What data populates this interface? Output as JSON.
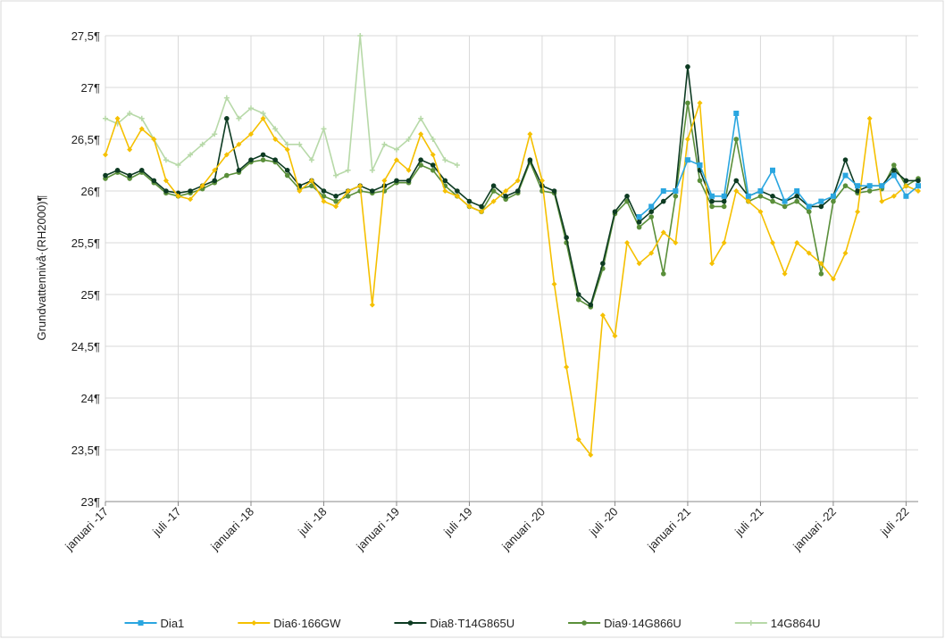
{
  "chart_data": {
    "type": "line",
    "y_label": "Grundvattennivå·(RH2000)¶",
    "x": [
      "2017-01",
      "2017-02",
      "2017-03",
      "2017-04",
      "2017-05",
      "2017-06",
      "2017-07",
      "2017-08",
      "2017-09",
      "2017-10",
      "2017-11",
      "2017-12",
      "2018-01",
      "2018-02",
      "2018-03",
      "2018-04",
      "2018-05",
      "2018-06",
      "2018-07",
      "2018-08",
      "2018-09",
      "2018-10",
      "2018-11",
      "2018-12",
      "2019-01",
      "2019-02",
      "2019-03",
      "2019-04",
      "2019-05",
      "2019-06",
      "2019-07",
      "2019-08",
      "2019-09",
      "2019-10",
      "2019-11",
      "2019-12",
      "2020-01",
      "2020-02",
      "2020-03",
      "2020-04",
      "2020-05",
      "2020-06",
      "2020-07",
      "2020-08",
      "2020-09",
      "2020-10",
      "2020-11",
      "2020-12",
      "2021-01",
      "2021-02",
      "2021-03",
      "2021-04",
      "2021-05",
      "2021-06",
      "2021-07",
      "2021-08",
      "2021-09",
      "2021-10",
      "2021-11",
      "2021-12",
      "2022-01",
      "2022-02",
      "2022-03",
      "2022-04",
      "2022-05",
      "2022-06",
      "2022-07",
      "2022-08"
    ],
    "series": [
      {
        "name": "Dia1",
        "color": "#2aa6e0",
        "marker": "square",
        "values": [
          null,
          null,
          null,
          null,
          null,
          null,
          null,
          null,
          null,
          null,
          null,
          null,
          null,
          null,
          null,
          null,
          null,
          null,
          null,
          null,
          null,
          null,
          null,
          null,
          null,
          null,
          null,
          null,
          null,
          null,
          null,
          null,
          null,
          null,
          null,
          null,
          null,
          null,
          null,
          null,
          null,
          null,
          null,
          null,
          25.75,
          25.85,
          26.0,
          26.0,
          26.3,
          26.25,
          25.95,
          25.95,
          26.75,
          25.95,
          26.0,
          26.2,
          25.9,
          26.0,
          25.85,
          25.9,
          25.95,
          26.15,
          26.05,
          26.05,
          26.05,
          26.15,
          25.95,
          26.05
        ]
      },
      {
        "name": "Dia6·166GW",
        "color": "#f5c000",
        "marker": "diamond",
        "values": [
          26.35,
          26.7,
          26.4,
          26.6,
          26.5,
          26.1,
          25.95,
          25.92,
          26.05,
          26.2,
          26.35,
          26.45,
          26.55,
          26.7,
          26.5,
          26.4,
          26.0,
          26.1,
          25.9,
          25.85,
          26.0,
          26.05,
          24.9,
          26.1,
          26.3,
          26.2,
          26.55,
          26.35,
          26.0,
          25.95,
          25.85,
          25.8,
          25.9,
          26.0,
          26.1,
          26.55,
          26.1,
          25.1,
          24.3,
          23.6,
          23.45,
          24.8,
          24.6,
          25.5,
          25.3,
          25.4,
          25.6,
          25.5,
          26.5,
          26.85,
          25.3,
          25.5,
          26.0,
          25.9,
          25.8,
          25.5,
          25.2,
          25.5,
          25.4,
          25.3,
          25.15,
          25.4,
          25.8,
          26.7,
          25.9,
          25.95,
          26.05,
          26.0
        ]
      },
      {
        "name": "Dia8·T14G865U",
        "color": "#0d3b22",
        "marker": "circle",
        "values": [
          26.15,
          26.2,
          26.15,
          26.2,
          26.1,
          26.0,
          25.98,
          26.0,
          26.05,
          26.1,
          26.7,
          26.2,
          26.3,
          26.35,
          26.3,
          26.2,
          26.05,
          26.1,
          26.0,
          25.95,
          26.0,
          26.05,
          26.0,
          26.05,
          26.1,
          26.1,
          26.3,
          26.25,
          26.1,
          26.0,
          25.9,
          25.85,
          26.05,
          25.95,
          26.0,
          26.3,
          26.05,
          26.0,
          25.55,
          25.0,
          24.9,
          25.3,
          25.8,
          25.95,
          25.7,
          25.8,
          25.9,
          26.0,
          27.2,
          26.2,
          25.9,
          25.9,
          26.1,
          25.95,
          26.0,
          25.95,
          25.9,
          25.95,
          25.85,
          25.85,
          25.95,
          26.3,
          26.0,
          26.05,
          26.05,
          26.2,
          26.1,
          26.1
        ]
      },
      {
        "name": "Dia9·14G866U",
        "color": "#5a8f3a",
        "marker": "circle",
        "values": [
          26.12,
          26.18,
          26.12,
          26.18,
          26.08,
          25.98,
          25.95,
          25.98,
          26.02,
          26.08,
          26.15,
          26.18,
          26.28,
          26.3,
          26.28,
          26.15,
          26.02,
          26.05,
          25.95,
          25.9,
          25.95,
          26.0,
          25.98,
          26.0,
          26.08,
          26.08,
          26.25,
          26.2,
          26.05,
          25.95,
          25.85,
          25.8,
          26.0,
          25.92,
          25.98,
          26.28,
          26.0,
          25.98,
          25.5,
          24.95,
          24.88,
          25.25,
          25.78,
          25.9,
          25.65,
          25.75,
          25.2,
          25.95,
          26.85,
          26.1,
          25.85,
          25.85,
          26.5,
          25.9,
          25.95,
          25.9,
          25.85,
          25.9,
          25.8,
          25.2,
          25.9,
          26.05,
          25.98,
          26.0,
          26.02,
          26.25,
          26.05,
          26.12
        ]
      },
      {
        "name": "14G864U",
        "color": "#b7d9a8",
        "marker": "star",
        "values": [
          26.7,
          26.65,
          26.75,
          26.7,
          26.5,
          26.3,
          26.25,
          26.35,
          26.45,
          26.55,
          26.9,
          26.7,
          26.8,
          26.75,
          26.6,
          26.45,
          26.45,
          26.3,
          26.6,
          26.15,
          26.2,
          27.5,
          26.2,
          26.45,
          26.4,
          26.5,
          26.7,
          26.5,
          26.3,
          26.25,
          null,
          null,
          null,
          null,
          null,
          null,
          null,
          null,
          null,
          null,
          null,
          null,
          null,
          null,
          null,
          null,
          null,
          null,
          null,
          null,
          null,
          null,
          null,
          null,
          null,
          null,
          null,
          null,
          null,
          null,
          null,
          null,
          null,
          null,
          null,
          null,
          null,
          null
        ]
      }
    ],
    "xlim": [
      "2017-01",
      "2022-08"
    ],
    "xticks": [
      {
        "value": "2017-01",
        "label": "januari -17"
      },
      {
        "value": "2017-07",
        "label": "juli -17"
      },
      {
        "value": "2018-01",
        "label": "januari -18"
      },
      {
        "value": "2018-07",
        "label": "juli -18"
      },
      {
        "value": "2019-01",
        "label": "januari -19"
      },
      {
        "value": "2019-07",
        "label": "juli -19"
      },
      {
        "value": "2020-01",
        "label": "januari -20"
      },
      {
        "value": "2020-07",
        "label": "juli -20"
      },
      {
        "value": "2021-01",
        "label": "januari -21"
      },
      {
        "value": "2021-07",
        "label": "juli -21"
      },
      {
        "value": "2022-01",
        "label": "januari -22"
      },
      {
        "value": "2022-07",
        "label": "juli -22"
      }
    ],
    "ylim": [
      23,
      27.5
    ],
    "yticks": [
      {
        "value": 23,
        "label": "23¶"
      },
      {
        "value": 23.5,
        "label": "23,5¶"
      },
      {
        "value": 24,
        "label": "24¶"
      },
      {
        "value": 24.5,
        "label": "24,5¶"
      },
      {
        "value": 25,
        "label": "25¶"
      },
      {
        "value": 25.5,
        "label": "25,5¶"
      },
      {
        "value": 26,
        "label": "26¶"
      },
      {
        "value": 26.5,
        "label": "26,5¶"
      },
      {
        "value": 27,
        "label": "27¶"
      },
      {
        "value": 27.5,
        "label": "27,5¶"
      }
    ],
    "grid": true,
    "legend": "bottom"
  }
}
